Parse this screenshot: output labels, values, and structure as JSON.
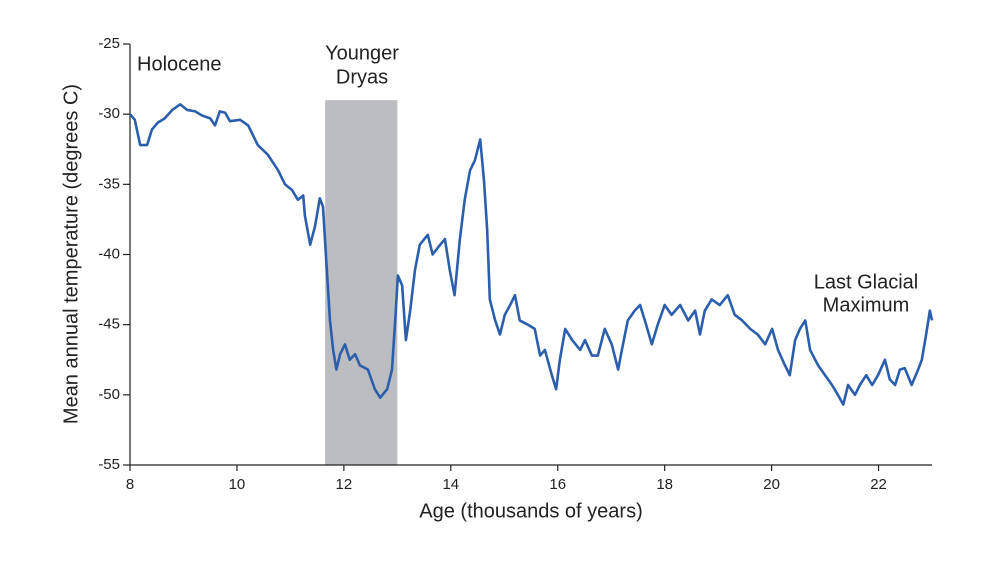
{
  "chart_data": {
    "type": "line",
    "xlabel": "Age (thousands of years)",
    "ylabel": "Mean annual temperature (degrees C)",
    "xlim": [
      8,
      23
    ],
    "ylim": [
      -55,
      -25
    ],
    "xticks": [
      8,
      10,
      12,
      14,
      16,
      18,
      20,
      22
    ],
    "yticks": [
      -55,
      -50,
      -45,
      -40,
      -35,
      -30,
      -25
    ],
    "shaded_region": {
      "x": [
        11.65,
        13.0
      ],
      "top": -29,
      "color": "#bcbdc0"
    },
    "annotations": [
      {
        "lines": [
          "Holocene"
        ]
      },
      {
        "lines": [
          "Younger",
          "Dryas"
        ]
      },
      {
        "lines": [
          "Last Glacial",
          "Maximum"
        ]
      }
    ],
    "series": [
      {
        "color": "#2b5fad",
        "x": [
          8.0,
          8.09,
          8.19,
          8.32,
          8.41,
          8.52,
          8.65,
          8.79,
          8.94,
          9.07,
          9.22,
          9.35,
          9.5,
          9.59,
          9.68,
          9.78,
          9.87,
          10.06,
          10.21,
          10.39,
          10.58,
          10.77,
          10.9,
          11.03,
          11.14,
          11.24,
          11.27,
          11.37,
          11.46,
          11.55,
          11.61,
          11.67,
          11.74,
          11.8,
          11.86,
          11.93,
          12.02,
          12.11,
          12.21,
          12.3,
          12.45,
          12.58,
          12.68,
          12.81,
          12.9,
          12.96,
          13.01,
          13.09,
          13.16,
          13.24,
          13.33,
          13.42,
          13.57,
          13.66,
          13.76,
          13.89,
          13.98,
          14.07,
          14.17,
          14.26,
          14.36,
          14.45,
          14.55,
          14.62,
          14.68,
          14.73,
          14.83,
          14.92,
          15.01,
          15.11,
          15.2,
          15.29,
          15.44,
          15.57,
          15.67,
          15.76,
          15.89,
          15.97,
          16.04,
          16.14,
          16.27,
          16.42,
          16.51,
          16.64,
          16.75,
          16.88,
          17.01,
          17.13,
          17.2,
          17.31,
          17.44,
          17.54,
          17.63,
          17.76,
          17.87,
          18.0,
          18.13,
          18.29,
          18.44,
          18.57,
          18.66,
          18.75,
          18.88,
          19.03,
          19.18,
          19.31,
          19.45,
          19.6,
          19.74,
          19.88,
          20.01,
          20.12,
          20.25,
          20.34,
          20.44,
          20.53,
          20.63,
          20.72,
          20.87,
          21.0,
          21.13,
          21.24,
          21.34,
          21.43,
          21.56,
          21.65,
          21.77,
          21.88,
          21.99,
          22.12,
          22.21,
          22.31,
          22.4,
          22.49,
          22.62,
          22.74,
          22.81,
          22.89,
          22.96,
          23.0
        ],
        "values": [
          -30.0,
          -30.4,
          -32.2,
          -32.2,
          -31.1,
          -30.6,
          -30.3,
          -29.7,
          -29.3,
          -29.7,
          -29.8,
          -30.1,
          -30.3,
          -30.8,
          -29.8,
          -29.9,
          -30.5,
          -30.4,
          -30.8,
          -32.2,
          -32.9,
          -34.0,
          -35.0,
          -35.4,
          -36.1,
          -35.8,
          -37.2,
          -39.3,
          -38.0,
          -36.0,
          -36.6,
          -40.4,
          -44.7,
          -46.8,
          -48.2,
          -47.1,
          -46.4,
          -47.5,
          -47.1,
          -47.9,
          -48.2,
          -49.6,
          -50.2,
          -49.6,
          -48.2,
          -44.7,
          -41.5,
          -42.2,
          -46.1,
          -44.0,
          -41.1,
          -39.3,
          -38.6,
          -40.0,
          -39.5,
          -38.9,
          -41.1,
          -42.9,
          -38.9,
          -36.1,
          -34.0,
          -33.3,
          -31.8,
          -34.7,
          -38.2,
          -43.2,
          -44.7,
          -45.7,
          -44.3,
          -43.6,
          -42.9,
          -44.7,
          -45.0,
          -45.3,
          -47.2,
          -46.8,
          -48.6,
          -49.6,
          -47.5,
          -45.3,
          -46.1,
          -46.8,
          -46.1,
          -47.2,
          -47.2,
          -45.3,
          -46.4,
          -48.2,
          -46.8,
          -44.7,
          -44.0,
          -43.6,
          -44.7,
          -46.4,
          -45.0,
          -43.6,
          -44.3,
          -43.6,
          -44.7,
          -44.0,
          -45.7,
          -44.0,
          -43.2,
          -43.6,
          -42.9,
          -44.3,
          -44.7,
          -45.3,
          -45.7,
          -46.4,
          -45.3,
          -46.8,
          -47.9,
          -48.6,
          -46.1,
          -45.3,
          -44.7,
          -46.8,
          -47.9,
          -48.6,
          -49.3,
          -50.0,
          -50.7,
          -49.3,
          -50.0,
          -49.3,
          -48.6,
          -49.3,
          -48.6,
          -47.5,
          -48.9,
          -49.3,
          -48.2,
          -48.1,
          -49.3,
          -48.2,
          -47.5,
          -45.7,
          -44.0,
          -44.7
        ]
      }
    ]
  }
}
